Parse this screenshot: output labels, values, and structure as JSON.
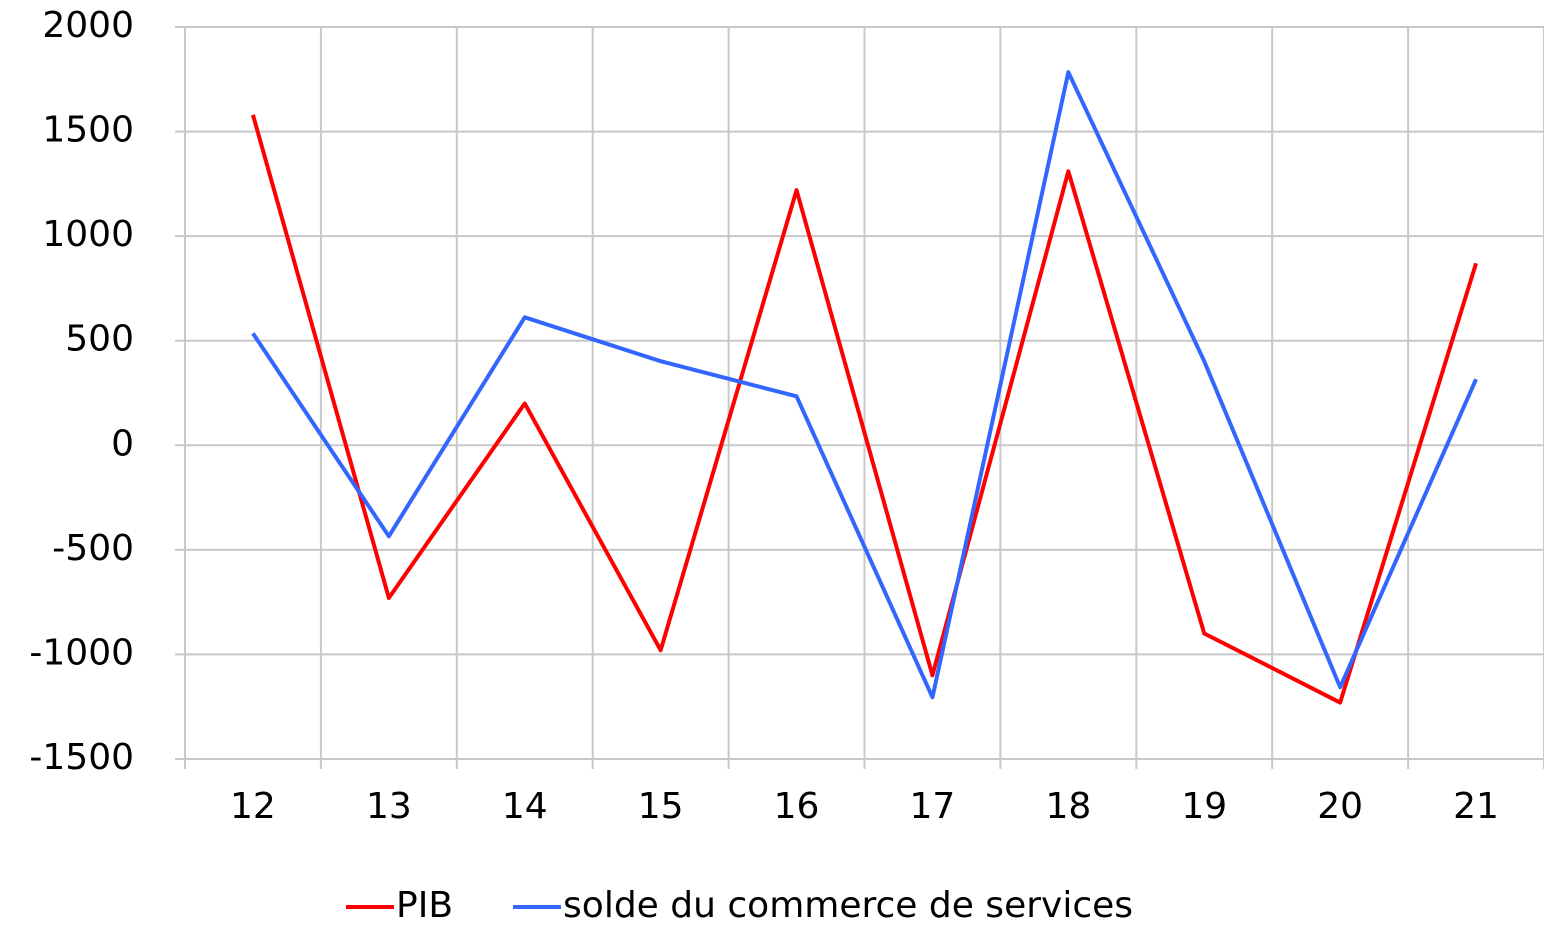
{
  "chart_data": {
    "type": "line",
    "categories": [
      "12",
      "13",
      "14",
      "15",
      "16",
      "17",
      "18",
      "19",
      "20",
      "21"
    ],
    "series": [
      {
        "name": "PIB",
        "color": "#ff0000",
        "values": [
          1580,
          -730,
          200,
          -980,
          1220,
          -1100,
          1310,
          -900,
          -1230,
          870
        ]
      },
      {
        "name": "solde du commerce de services",
        "color": "#3366ff",
        "values": [
          535,
          -435,
          612,
          402,
          234,
          -1205,
          1784,
          402,
          -1157,
          316
        ]
      }
    ],
    "ylim": [
      -1500,
      2000
    ],
    "yticks": [
      -1500,
      -1000,
      -500,
      0,
      500,
      1000,
      1500,
      2000
    ],
    "grid": true,
    "legend": "bottom"
  }
}
